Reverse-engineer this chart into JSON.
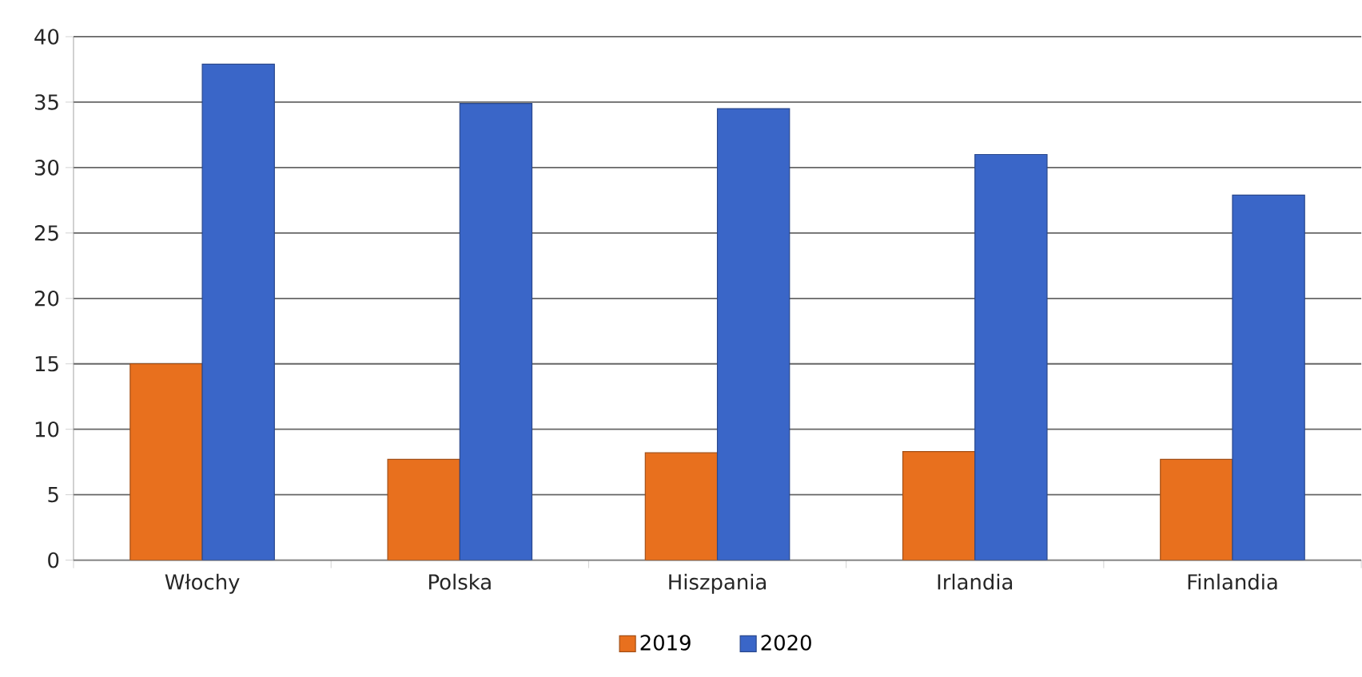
{
  "chart_data": {
    "type": "bar",
    "categories": [
      "Włochy",
      "Polska",
      "Hiszpania",
      "Irlandia",
      "Finlandia"
    ],
    "series": [
      {
        "name": "2019",
        "color": "#e8701e",
        "values": [
          15,
          7.7,
          8.2,
          8.3,
          7.7
        ]
      },
      {
        "name": "2020",
        "color": "#3a66c8",
        "values": [
          37.9,
          34.9,
          34.5,
          31,
          27.9
        ]
      }
    ],
    "ylim": [
      0,
      40
    ],
    "yticks": [
      0,
      5,
      10,
      15,
      20,
      25,
      30,
      35,
      40
    ],
    "grid": "y",
    "legend": "bottom"
  }
}
